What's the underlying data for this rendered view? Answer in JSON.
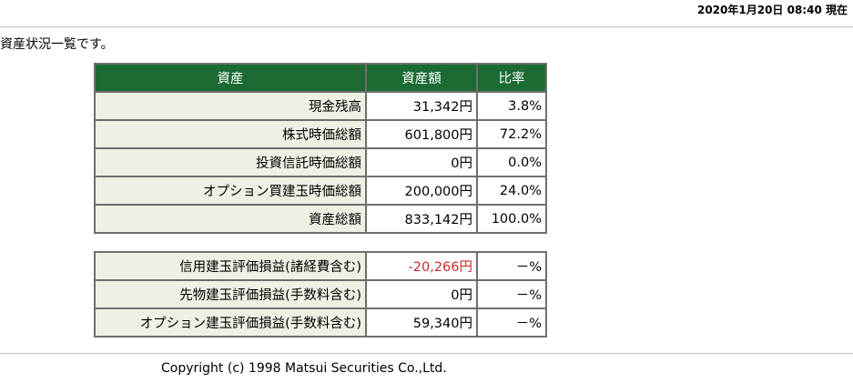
{
  "header": {
    "timestamp": "2020年1月20日 08:40 現在"
  },
  "intro": "資産状況一覧です。",
  "asset_table": {
    "columns": [
      "資産",
      "資産額",
      "比率"
    ],
    "rows": [
      {
        "label": "現金残高",
        "amount": "31,342円",
        "ratio": "3.8%"
      },
      {
        "label": "株式時価総額",
        "amount": "601,800円",
        "ratio": "72.2%"
      },
      {
        "label": "投資信託時価総額",
        "amount": "0円",
        "ratio": "0.0%"
      },
      {
        "label": "オプション買建玉時価総額",
        "amount": "200,000円",
        "ratio": "24.0%"
      },
      {
        "label": "資産総額",
        "amount": "833,142円",
        "ratio": "100.0%"
      }
    ]
  },
  "pl_table": {
    "rows": [
      {
        "label": "信用建玉評価損益(諸経費含む)",
        "amount": "-20,266円",
        "ratio": "－%"
      },
      {
        "label": "先物建玉評価損益(手数料含む)",
        "amount": "0円",
        "ratio": "－%"
      },
      {
        "label": "オプション建玉評価損益(手数料含む)",
        "amount": "59,340円",
        "ratio": "－%"
      }
    ]
  },
  "colors": {
    "header_bg": "#1b6b33",
    "label_bg": "#ecf1e3",
    "negative": "#d0282a"
  },
  "footer": {
    "copyright": "Copyright (c) 1998 Matsui Securities Co.,Ltd."
  }
}
